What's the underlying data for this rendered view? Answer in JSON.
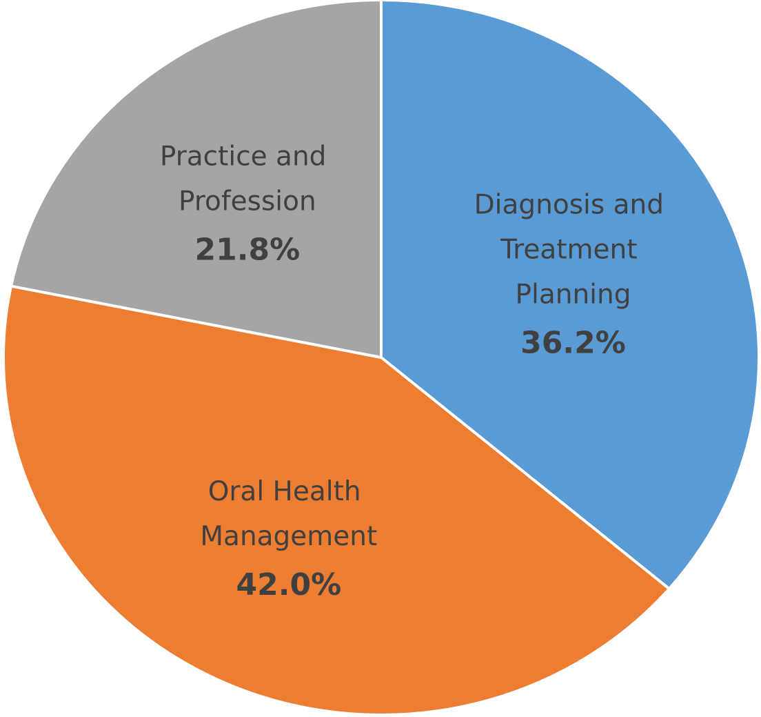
{
  "chart_data": {
    "type": "pie",
    "categories": [
      "Diagnosis and Treatment Planning",
      "Oral Health Management",
      "Practice and Profession"
    ],
    "values": [
      36.2,
      42.0,
      21.8
    ],
    "value_labels": [
      "36.2%",
      "42.0%",
      "21.8%"
    ],
    "colors": [
      "#5b9bd5",
      "#ed7d31",
      "#a5a5a5"
    ]
  }
}
